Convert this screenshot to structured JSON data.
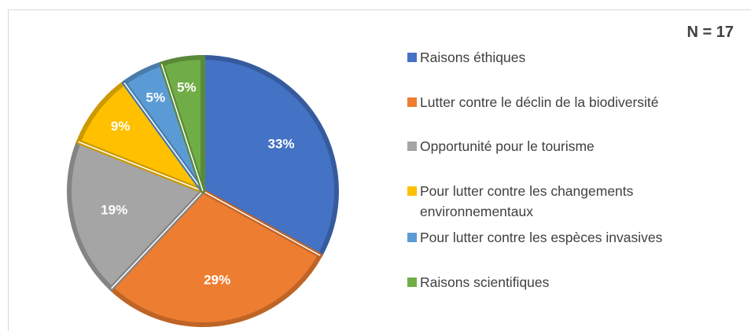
{
  "chart_data": {
    "type": "pie",
    "annotation": "N = 17",
    "categories": [
      "Raisons éthiques",
      "Lutter contre le déclin de la biodiversité",
      "Opportunité pour le tourisme",
      "Pour lutter contre les changements environnementaux",
      "Pour lutter contre les espèces invasives",
      "Raisons scientifiques"
    ],
    "values": [
      33,
      29,
      19,
      9,
      5,
      5
    ],
    "value_labels": [
      "33%",
      "29%",
      "19%",
      "9%",
      "5%",
      "5%"
    ],
    "colors": [
      "#4472c4",
      "#ed7d31",
      "#a5a5a5",
      "#ffc000",
      "#5b9bd5",
      "#70ad47"
    ],
    "legend": "right"
  }
}
